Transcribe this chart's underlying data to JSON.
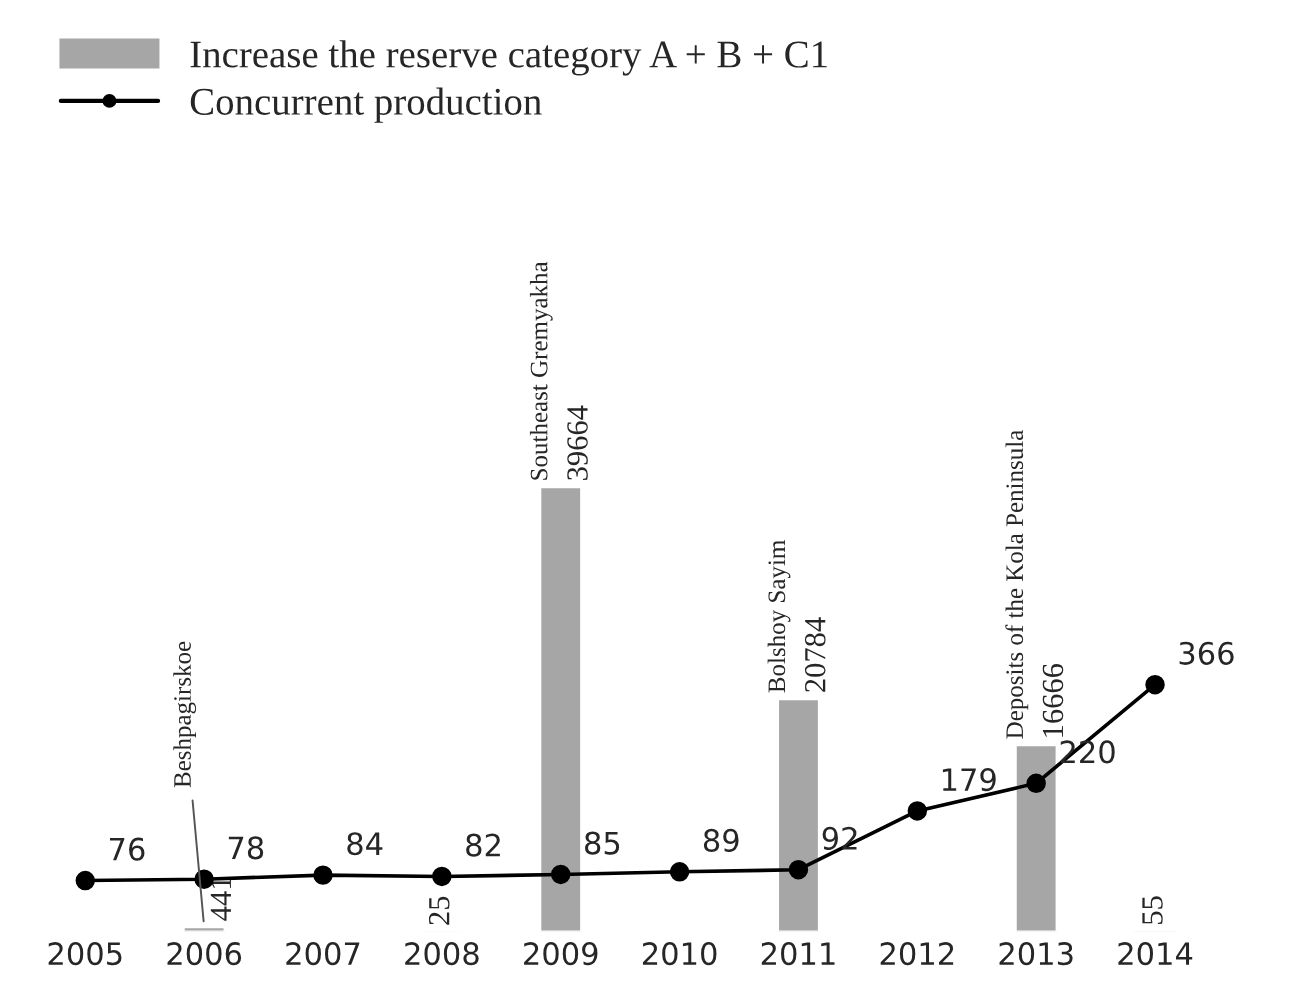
{
  "chart_data": {
    "type": "bar",
    "categories": [
      "2005",
      "2006",
      "2007",
      "2008",
      "2009",
      "2010",
      "2011",
      "2012",
      "2013",
      "2014"
    ],
    "series": [
      {
        "name": "Increase the reserve category A + B + C1",
        "color": "#a6a6a6",
        "values": [
          null,
          441,
          null,
          25,
          39664,
          null,
          20784,
          null,
          16666,
          55
        ]
      },
      {
        "name": "Concurrent production",
        "type": "line",
        "axis": "y2",
        "color": "#000000",
        "marker": "circle",
        "values": [
          76,
          78,
          84,
          82,
          85,
          89,
          92,
          179,
          220,
          366
        ]
      }
    ],
    "tick_labels": "x",
    "data_labels": true,
    "legend": "top left",
    "grid": false,
    "annotations": [
      {
        "text": "Beshpagirskoe",
        "x": "2006",
        "y": 441
      },
      {
        "text": "Southeast Gremyakha",
        "x": "2009",
        "y": 39664
      },
      {
        "text": "Bolshoy Sayim",
        "x": "2011",
        "y": 20784
      },
      {
        "text": "Deposits of the Kola Peninsula",
        "x": "2013",
        "y": 16666
      }
    ]
  }
}
